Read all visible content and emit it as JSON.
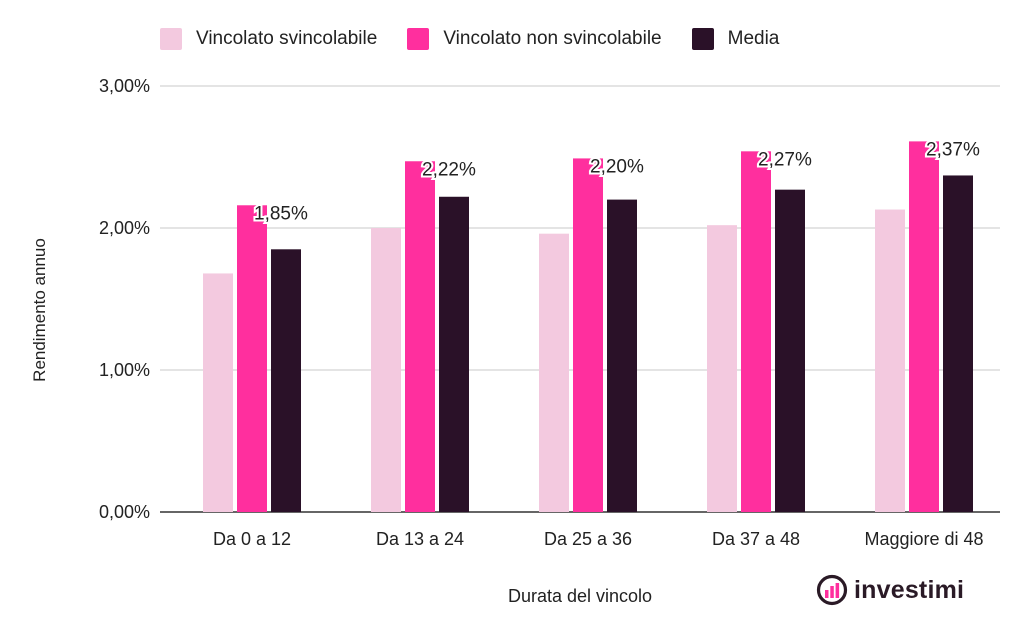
{
  "chart_data": {
    "type": "bar",
    "categories": [
      "Da 0 a 12",
      "Da 13 a 24",
      "Da 25 a 36",
      "Da 37 a 48",
      "Maggiore di 48"
    ],
    "series": [
      {
        "name": "Vincolato svincolabile",
        "color": "#f3c9df",
        "values": [
          1.68,
          2.0,
          1.96,
          2.02,
          2.13
        ]
      },
      {
        "name": "Vincolato non svincolabile",
        "color": "#ff2f9e",
        "values": [
          2.16,
          2.47,
          2.49,
          2.54,
          2.61
        ]
      },
      {
        "name": "Media",
        "color": "#2a1128",
        "values": [
          1.85,
          2.22,
          2.2,
          2.27,
          2.37
        ]
      }
    ],
    "data_labels": [
      "1,85%",
      "2,22%",
      "2,20%",
      "2,27%",
      "2,37%"
    ],
    "ylim": [
      0,
      3
    ],
    "yticks": [
      0,
      1,
      2,
      3
    ],
    "ytick_labels": [
      "0,00%",
      "1,00%",
      "2,00%",
      "3,00%"
    ],
    "xlabel": "Durata del vincolo",
    "ylabel": "Rendimento annuo",
    "grid": true,
    "legend_position": "top"
  },
  "brand": {
    "name": "investimi",
    "icon": "bar-chart-icon"
  }
}
